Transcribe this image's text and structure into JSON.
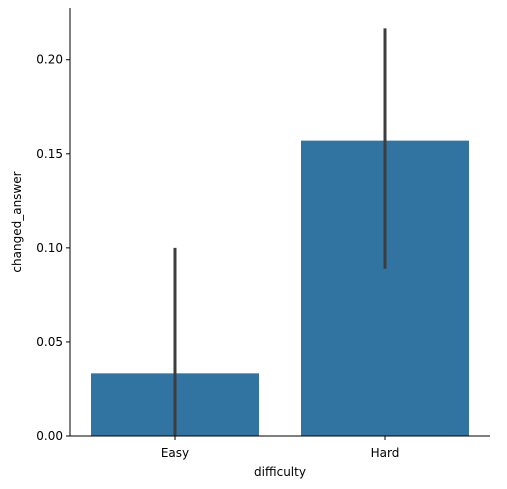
{
  "chart_data": {
    "type": "bar",
    "title": "",
    "xlabel": "difficulty",
    "ylabel": "changed_answer",
    "categories": [
      "Easy",
      "Hard"
    ],
    "values": [
      0.0333,
      0.157
    ],
    "error_bars": [
      {
        "low": 0.0,
        "high": 0.1
      },
      {
        "low": 0.0889,
        "high": 0.2167
      }
    ],
    "ylim": [
      0,
      0.2275
    ],
    "yticks": [
      0.0,
      0.05,
      0.1,
      0.15,
      0.2
    ],
    "ytick_labels": [
      "0.00",
      "0.05",
      "0.10",
      "0.15",
      "0.20"
    ],
    "grid": false,
    "legend": "none",
    "colors": {
      "bar": "#3274a1",
      "error_bar": "#3d3d3d",
      "axis": "#000000"
    }
  }
}
